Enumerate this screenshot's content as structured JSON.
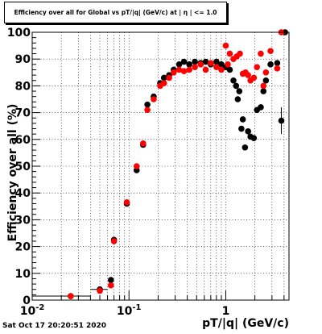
{
  "chart_data": {
    "type": "scatter",
    "title": "Efficiency over all for Global vs pT/|q| (GeV/c) at | η | <= 1.0",
    "xlabel": "pT/|q| (GeV/c)",
    "ylabel": "Efficiency over all (%)",
    "xscale": "log",
    "xlim": [
      0.01,
      4.5
    ],
    "ylim": [
      0,
      100
    ],
    "grid": true,
    "x_ticks": [
      {
        "value": 0.01,
        "label": "10",
        "sup": "-2"
      },
      {
        "value": 0.1,
        "label": "10",
        "sup": "-1"
      },
      {
        "value": 1,
        "label": "1",
        "sup": ""
      }
    ],
    "y_ticks": [
      "0",
      "10",
      "20",
      "30",
      "40",
      "50",
      "60",
      "70",
      "80",
      "90",
      "100"
    ],
    "series": [
      {
        "color": "#000000",
        "points": [
          {
            "x": 0.025,
            "y": 1.5,
            "xe": 0.015
          },
          {
            "x": 0.05,
            "y": 4,
            "xe": 0.01
          },
          {
            "x": 0.065,
            "y": 7.5
          },
          {
            "x": 0.07,
            "y": 22.5
          },
          {
            "x": 0.095,
            "y": 36
          },
          {
            "x": 0.12,
            "y": 48.5
          },
          {
            "x": 0.14,
            "y": 58
          },
          {
            "x": 0.155,
            "y": 73
          },
          {
            "x": 0.18,
            "y": 76
          },
          {
            "x": 0.21,
            "y": 81
          },
          {
            "x": 0.23,
            "y": 83
          },
          {
            "x": 0.26,
            "y": 84
          },
          {
            "x": 0.29,
            "y": 86
          },
          {
            "x": 0.33,
            "y": 88
          },
          {
            "x": 0.37,
            "y": 89
          },
          {
            "x": 0.42,
            "y": 88
          },
          {
            "x": 0.48,
            "y": 89
          },
          {
            "x": 0.55,
            "y": 88.5
          },
          {
            "x": 0.62,
            "y": 89
          },
          {
            "x": 0.7,
            "y": 88
          },
          {
            "x": 0.8,
            "y": 89
          },
          {
            "x": 0.9,
            "y": 88
          },
          {
            "x": 1.0,
            "y": 87
          },
          {
            "x": 1.1,
            "y": 86
          },
          {
            "x": 1.2,
            "y": 82
          },
          {
            "x": 1.28,
            "y": 80
          },
          {
            "x": 1.33,
            "y": 75
          },
          {
            "x": 1.38,
            "y": 78
          },
          {
            "x": 1.45,
            "y": 64
          },
          {
            "x": 1.5,
            "y": 67.5
          },
          {
            "x": 1.58,
            "y": 57
          },
          {
            "x": 1.7,
            "y": 63
          },
          {
            "x": 1.8,
            "y": 61
          },
          {
            "x": 1.95,
            "y": 60.5
          },
          {
            "x": 2.1,
            "y": 71
          },
          {
            "x": 2.3,
            "y": 72
          },
          {
            "x": 2.45,
            "y": 78
          },
          {
            "x": 2.6,
            "y": 82
          },
          {
            "x": 2.9,
            "y": 88
          },
          {
            "x": 3.4,
            "y": 88.5
          },
          {
            "x": 3.75,
            "y": 67,
            "ye": 5
          },
          {
            "x": 4.1,
            "y": 100
          }
        ]
      },
      {
        "color": "#ff0000",
        "points": [
          {
            "x": 0.025,
            "y": 1.5
          },
          {
            "x": 0.05,
            "y": 3.5
          },
          {
            "x": 0.065,
            "y": 5.5
          },
          {
            "x": 0.07,
            "y": 22
          },
          {
            "x": 0.095,
            "y": 36.5
          },
          {
            "x": 0.12,
            "y": 50
          },
          {
            "x": 0.14,
            "y": 58.5
          },
          {
            "x": 0.155,
            "y": 71
          },
          {
            "x": 0.18,
            "y": 75
          },
          {
            "x": 0.21,
            "y": 80
          },
          {
            "x": 0.23,
            "y": 81
          },
          {
            "x": 0.26,
            "y": 83
          },
          {
            "x": 0.29,
            "y": 85
          },
          {
            "x": 0.33,
            "y": 86
          },
          {
            "x": 0.37,
            "y": 85.5
          },
          {
            "x": 0.42,
            "y": 86
          },
          {
            "x": 0.48,
            "y": 87
          },
          {
            "x": 0.55,
            "y": 88
          },
          {
            "x": 0.62,
            "y": 86
          },
          {
            "x": 0.7,
            "y": 88.5
          },
          {
            "x": 0.8,
            "y": 87
          },
          {
            "x": 0.9,
            "y": 86
          },
          {
            "x": 1.0,
            "y": 95
          },
          {
            "x": 1.05,
            "y": 88
          },
          {
            "x": 1.1,
            "y": 92
          },
          {
            "x": 1.2,
            "y": 90
          },
          {
            "x": 1.3,
            "y": 91
          },
          {
            "x": 1.4,
            "y": 92
          },
          {
            "x": 1.5,
            "y": 84.5
          },
          {
            "x": 1.6,
            "y": 85
          },
          {
            "x": 1.7,
            "y": 84
          },
          {
            "x": 1.8,
            "y": 82
          },
          {
            "x": 1.95,
            "y": 83
          },
          {
            "x": 2.1,
            "y": 87
          },
          {
            "x": 2.3,
            "y": 92
          },
          {
            "x": 2.45,
            "y": 80
          },
          {
            "x": 2.6,
            "y": 85
          },
          {
            "x": 2.9,
            "y": 93
          },
          {
            "x": 3.4,
            "y": 86.5
          },
          {
            "x": 3.75,
            "y": 100
          }
        ]
      }
    ]
  },
  "timestamp": "Sat Oct 17 20:20:51 2020"
}
